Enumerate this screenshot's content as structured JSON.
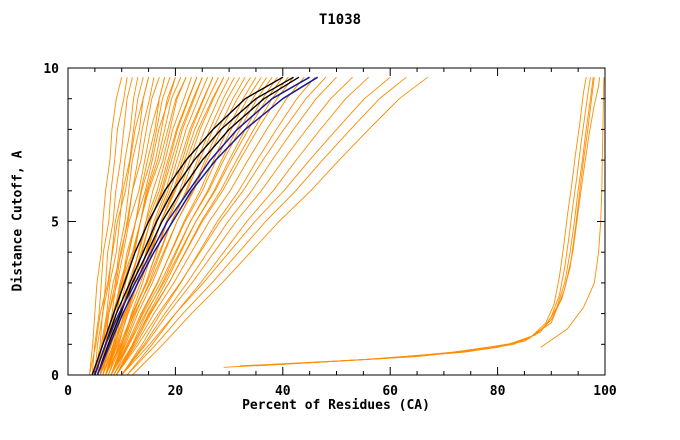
{
  "chart_data": {
    "type": "line",
    "title": "T1038",
    "xlabel": "Percent of Residues (CA)",
    "ylabel": "Distance Cutoff, A",
    "xlim": [
      0,
      100
    ],
    "ylim": [
      0,
      10
    ],
    "x_ticks_major": [
      0,
      20,
      40,
      60,
      80,
      100
    ],
    "x_ticks_minor": [
      5,
      10,
      15,
      25,
      30,
      35,
      45,
      50,
      55,
      65,
      70,
      75,
      85,
      90,
      95
    ],
    "y_ticks_major": [
      0,
      5,
      10
    ],
    "y_ticks_minor": [
      1,
      2,
      3,
      4,
      6,
      7,
      8,
      9
    ],
    "colors": {
      "orange": "#ff8c00",
      "black": "#000000",
      "navy": "#1a1a9c"
    },
    "y_levels": [
      0,
      1,
      2,
      3,
      4,
      5,
      6,
      7,
      8,
      9,
      9.7
    ],
    "series": {
      "orange_models": [
        [
          4,
          4.6,
          5,
          5.4,
          6.2,
          6.5,
          7,
          7.8,
          8.2,
          9,
          10
        ],
        [
          4.5,
          5,
          5.8,
          6.2,
          6.6,
          7.6,
          8,
          8.7,
          9.2,
          10.4,
          11
        ],
        [
          5,
          5.5,
          6.5,
          7,
          7.4,
          8.4,
          8.9,
          9.8,
          10.4,
          11,
          12
        ],
        [
          5,
          6,
          6.4,
          7.6,
          8.2,
          8.8,
          10,
          10.6,
          11.6,
          12.2,
          13
        ],
        [
          5.5,
          6.2,
          7.2,
          7.8,
          9,
          9.6,
          10.2,
          11.5,
          12.2,
          13,
          14
        ],
        [
          6,
          7,
          7.6,
          8.8,
          9.5,
          10.6,
          11.3,
          12,
          13.3,
          14,
          15
        ],
        [
          4,
          5.2,
          6,
          7.4,
          8.3,
          9.2,
          10.7,
          11.6,
          12.5,
          14,
          15
        ],
        [
          6,
          7,
          8.2,
          9,
          9.8,
          11.2,
          12,
          13,
          13.8,
          15.2,
          16
        ],
        [
          5,
          6.4,
          7.4,
          8.4,
          10,
          11,
          12,
          13.6,
          14.6,
          15.6,
          17
        ],
        [
          6.5,
          7.6,
          9,
          10,
          11,
          12.6,
          13.6,
          14.8,
          16.2,
          17,
          18
        ],
        [
          5,
          6.5,
          7.6,
          9.2,
          10.3,
          11.4,
          13.2,
          14.3,
          15.4,
          17,
          18
        ],
        [
          6,
          7.5,
          8.6,
          9.7,
          11.4,
          12.6,
          13.7,
          15.4,
          16.5,
          17.6,
          19
        ],
        [
          7,
          8.5,
          9.6,
          10.7,
          12.4,
          13.5,
          14.6,
          16.3,
          17.4,
          18.5,
          20
        ],
        [
          5.5,
          7.2,
          8.4,
          10.1,
          11.3,
          12.6,
          14.4,
          15.7,
          16.9,
          18.8,
          20
        ],
        [
          6,
          7.7,
          9,
          10.3,
          12.2,
          13.5,
          14.8,
          16.7,
          18,
          19.3,
          21
        ],
        [
          7,
          8.7,
          10,
          11.3,
          13.2,
          14.5,
          15.8,
          17.7,
          19,
          20.3,
          22
        ],
        [
          5,
          6.9,
          8.4,
          9.9,
          12,
          13.5,
          15,
          17.1,
          18.6,
          20.1,
          22
        ],
        [
          6.5,
          8.4,
          9.8,
          11.7,
          13.1,
          14.5,
          16.6,
          18.1,
          19.5,
          21.6,
          23
        ],
        [
          7,
          8.9,
          10.4,
          12.3,
          13.8,
          15.3,
          17.4,
          18.9,
          20.4,
          22.5,
          24
        ],
        [
          6,
          8,
          9.6,
          11.6,
          13.2,
          14.8,
          17,
          18.6,
          20.2,
          22.4,
          24
        ],
        [
          7.5,
          9.5,
          11,
          13,
          14.5,
          16,
          18.2,
          19.8,
          21.3,
          23.5,
          25
        ],
        [
          6,
          8.1,
          9.8,
          11.9,
          13.6,
          15.3,
          17.6,
          19.3,
          21,
          23.3,
          25
        ],
        [
          7,
          9.1,
          10.8,
          12.9,
          14.6,
          16.3,
          18.6,
          20.3,
          22,
          24.3,
          26
        ],
        [
          8,
          10.1,
          11.8,
          13.9,
          15.6,
          17.3,
          19.6,
          21.3,
          23,
          25.3,
          27
        ],
        [
          6.5,
          8.8,
          10.6,
          12.9,
          14.7,
          16.6,
          19,
          20.9,
          22.7,
          25.2,
          27
        ],
        [
          7,
          9.3,
          11.2,
          13.5,
          15.4,
          17.3,
          19.8,
          21.7,
          23.6,
          26.1,
          28
        ],
        [
          8,
          10.3,
          12.2,
          14.5,
          16.4,
          18.3,
          20.8,
          22.7,
          24.6,
          27.1,
          29
        ],
        [
          6,
          8.5,
          10.6,
          13.1,
          15.2,
          17.3,
          20,
          22.1,
          24.2,
          26.9,
          29
        ],
        [
          7.5,
          10,
          12,
          14.5,
          16.5,
          18.5,
          21.2,
          23.3,
          25.5,
          28,
          30
        ],
        [
          8,
          10.5,
          12.6,
          15.1,
          17.2,
          19.3,
          22,
          24.1,
          26.4,
          28.9,
          31
        ],
        [
          7,
          9.7,
          12,
          14.7,
          17,
          19.3,
          22.2,
          24.5,
          27,
          29.7,
          32
        ],
        [
          8,
          10.7,
          13,
          15.7,
          18,
          20.3,
          23.2,
          25.5,
          28,
          30.7,
          33
        ],
        [
          7,
          9.9,
          12.4,
          15.3,
          17.8,
          20.3,
          23.4,
          25.9,
          28.6,
          31.5,
          34
        ],
        [
          8.5,
          11.4,
          13.8,
          16.7,
          19.1,
          21.6,
          24.6,
          27.1,
          29.7,
          32.6,
          35
        ],
        [
          8,
          11,
          13.6,
          16.6,
          19.2,
          21.8,
          25,
          27.6,
          30.4,
          33.4,
          36
        ],
        [
          9,
          12,
          14.6,
          17.6,
          20.2,
          22.8,
          26,
          28.6,
          31.4,
          34.4,
          37
        ],
        [
          8,
          11.2,
          14,
          17.2,
          20,
          22.8,
          26.2,
          29,
          32,
          35.2,
          38
        ],
        [
          9,
          12.2,
          15,
          18.2,
          21,
          23.8,
          27.2,
          30,
          33,
          36.2,
          39
        ],
        [
          8,
          11.4,
          14.4,
          17.8,
          20.8,
          23.8,
          27.4,
          30.4,
          33.6,
          37,
          40
        ],
        [
          9,
          12.4,
          15.4,
          18.8,
          21.8,
          24.8,
          28.4,
          31.4,
          34.6,
          38,
          41
        ],
        [
          8.5,
          12.1,
          15.2,
          18.8,
          21.9,
          25,
          28.8,
          32,
          35.3,
          38.9,
          42
        ],
        [
          9,
          12.7,
          16,
          19.7,
          23,
          26.3,
          30.2,
          33.5,
          37,
          40.7,
          44
        ],
        [
          10,
          13.8,
          17.2,
          21,
          24.4,
          27.8,
          31.8,
          35.2,
          38.8,
          42.6,
          46
        ],
        [
          9,
          13.1,
          16.8,
          20.9,
          24.6,
          28.3,
          32.6,
          36.3,
          40.2,
          44.3,
          48
        ],
        [
          10,
          14.2,
          18,
          22.2,
          26,
          29.8,
          34.2,
          38,
          42,
          46.2,
          50
        ],
        [
          10,
          14.5,
          18.6,
          23.1,
          27.2,
          31.3,
          36,
          40.1,
          44.4,
          48.9,
          53
        ],
        [
          11,
          15.7,
          20,
          24.7,
          29,
          33.3,
          38.2,
          42.5,
          47,
          51.7,
          56
        ],
        [
          10,
          15.2,
          20,
          25.2,
          30,
          34.8,
          40.2,
          45,
          50,
          55.2,
          60
        ],
        [
          11,
          16.4,
          21.4,
          26.8,
          31.8,
          36.8,
          42.4,
          47.4,
          52.6,
          58,
          63
        ],
        [
          12,
          17.7,
          23,
          28.7,
          34,
          39.3,
          45.2,
          50.5,
          56,
          61.7,
          67
        ]
      ],
      "good_models": [
        [
          [
            29,
            0.25
          ],
          [
            40,
            0.35
          ],
          [
            55,
            0.5
          ],
          [
            70,
            0.7
          ],
          [
            80,
            0.9
          ],
          [
            86,
            1.2
          ],
          [
            89,
            1.7
          ],
          [
            90.5,
            2.3
          ],
          [
            91.5,
            3.2
          ],
          [
            92.3,
            4.2
          ],
          [
            93,
            5.2
          ],
          [
            93.8,
            6.2
          ],
          [
            94.5,
            7.2
          ],
          [
            95.3,
            8.2
          ],
          [
            96,
            9.2
          ],
          [
            96.5,
            9.7
          ]
        ],
        [
          [
            32,
            0.3
          ],
          [
            45,
            0.4
          ],
          [
            60,
            0.55
          ],
          [
            74,
            0.75
          ],
          [
            83,
            1
          ],
          [
            88,
            1.4
          ],
          [
            90,
            1.9
          ],
          [
            91.5,
            2.6
          ],
          [
            92.5,
            3.5
          ],
          [
            93.3,
            4.5
          ],
          [
            94,
            5.5
          ],
          [
            94.8,
            6.5
          ],
          [
            95.5,
            7.5
          ],
          [
            96.3,
            8.5
          ],
          [
            97,
            9.4
          ],
          [
            97.3,
            9.7
          ]
        ],
        [
          [
            35,
            0.3
          ],
          [
            50,
            0.45
          ],
          [
            65,
            0.6
          ],
          [
            78,
            0.85
          ],
          [
            85,
            1.1
          ],
          [
            89,
            1.6
          ],
          [
            91,
            2.2
          ],
          [
            92.5,
            3
          ],
          [
            93.5,
            4
          ],
          [
            94.3,
            5
          ],
          [
            95,
            6
          ],
          [
            95.8,
            7
          ],
          [
            96.5,
            8
          ],
          [
            97.3,
            9
          ],
          [
            97.8,
            9.7
          ]
        ],
        [
          [
            38,
            0.35
          ],
          [
            55,
            0.5
          ],
          [
            70,
            0.7
          ],
          [
            82,
            1
          ],
          [
            87,
            1.3
          ],
          [
            90,
            1.8
          ],
          [
            92,
            2.5
          ],
          [
            93.5,
            3.5
          ],
          [
            94.5,
            4.8
          ],
          [
            95.3,
            6
          ],
          [
            96,
            7
          ],
          [
            96.8,
            8
          ],
          [
            97.5,
            9
          ],
          [
            98,
            9.7
          ]
        ],
        [
          [
            45,
            0.4
          ],
          [
            60,
            0.55
          ],
          [
            75,
            0.8
          ],
          [
            85,
            1.1
          ],
          [
            90,
            1.7
          ],
          [
            92.5,
            2.8
          ],
          [
            94,
            4
          ],
          [
            95,
            5.3
          ],
          [
            96,
            6.6
          ],
          [
            97,
            7.8
          ],
          [
            98,
            8.8
          ],
          [
            98.8,
            9.4
          ],
          [
            99,
            9.7
          ]
        ],
        [
          [
            88,
            0.9
          ],
          [
            93,
            1.5
          ],
          [
            96,
            2.2
          ],
          [
            98,
            3
          ],
          [
            98.8,
            4
          ],
          [
            99.2,
            5
          ],
          [
            99.4,
            6
          ],
          [
            99.5,
            7
          ],
          [
            99.6,
            8
          ],
          [
            99.7,
            9
          ],
          [
            99.8,
            9.7
          ]
        ]
      ],
      "black_models": [
        [
          4.5,
          6.5,
          8.5,
          10.5,
          12.5,
          15,
          18,
          22,
          27,
          33,
          40
        ],
        [
          5,
          7,
          9,
          11.5,
          14,
          16.5,
          19.5,
          23.5,
          28.5,
          35,
          42
        ],
        [
          5.5,
          7.5,
          9.8,
          12,
          14.8,
          17.5,
          21,
          25,
          30,
          36.5,
          43
        ]
      ],
      "navy_models": [
        [
          5,
          7,
          9.5,
          12.5,
          15.5,
          18.5,
          22.5,
          26.5,
          31.5,
          38,
          45
        ],
        [
          5.5,
          7.8,
          10.2,
          13,
          16,
          19.5,
          23,
          27.5,
          33,
          40,
          46.5
        ]
      ]
    }
  }
}
